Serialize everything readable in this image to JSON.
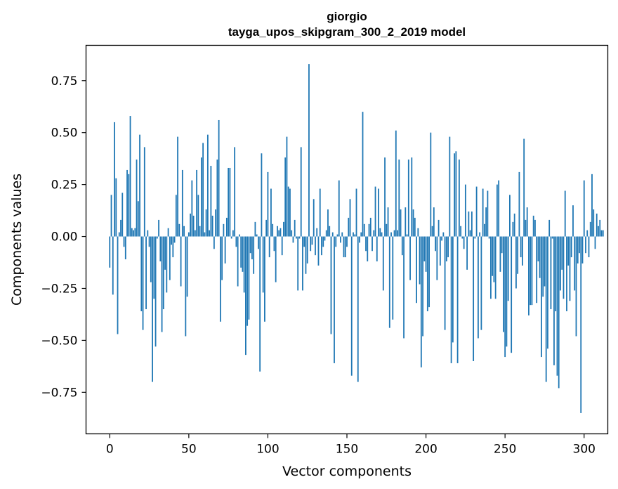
{
  "chart_data": {
    "type": "bar",
    "title_line1": "giorgio",
    "title_line2": "tayga_upos_skipgram_300_2_2019 model",
    "xlabel": "Vector components",
    "ylabel": "Components values",
    "xlim": [
      -15,
      315
    ],
    "ylim": [
      -0.95,
      0.92
    ],
    "xticks": [
      0,
      50,
      100,
      150,
      200,
      250,
      300
    ],
    "xtick_labels": [
      "0",
      "50",
      "100",
      "150",
      "200",
      "250",
      "300"
    ],
    "yticks": [
      0.75,
      0.5,
      0.25,
      0.0,
      -0.25,
      -0.5,
      -0.75
    ],
    "ytick_labels": [
      "0.75",
      "0.50",
      "0.25",
      "0.00",
      "−0.25",
      "−0.50",
      "−0.75"
    ],
    "grid": false,
    "color": "#1f77b4",
    "x_start": 0,
    "values": [
      -0.15,
      0.2,
      -0.28,
      0.55,
      0.28,
      -0.47,
      0.02,
      0.08,
      0.21,
      -0.05,
      -0.11,
      0.32,
      0.3,
      0.58,
      0.04,
      0.03,
      0.04,
      0.37,
      0.17,
      0.49,
      -0.36,
      -0.45,
      0.43,
      -0.35,
      0.03,
      -0.05,
      -0.22,
      -0.7,
      -0.3,
      -0.53,
      -0.01,
      0.08,
      -0.12,
      -0.46,
      -0.35,
      -0.16,
      -0.27,
      0.04,
      -0.21,
      -0.04,
      -0.1,
      -0.03,
      0.2,
      0.48,
      0.06,
      -0.24,
      0.32,
      0.05,
      -0.48,
      -0.29,
      0.02,
      0.11,
      0.27,
      0.1,
      0.03,
      0.32,
      0.2,
      0.05,
      0.38,
      0.45,
      0.02,
      0.13,
      0.49,
      0.03,
      0.34,
      0.1,
      -0.06,
      0.13,
      0.37,
      0.56,
      -0.41,
      -0.21,
      0.06,
      -0.13,
      0.09,
      0.33,
      0.33,
      -0.01,
      0.03,
      0.43,
      -0.05,
      -0.24,
      0.01,
      -0.15,
      -0.17,
      -0.27,
      -0.57,
      -0.43,
      -0.4,
      -0.08,
      -0.11,
      -0.18,
      0.07,
      0.01,
      -0.06,
      -0.65,
      0.4,
      -0.27,
      -0.41,
      0.08,
      0.31,
      -0.1,
      0.23,
      0.06,
      -0.07,
      -0.22,
      0.05,
      0.03,
      0.04,
      -0.09,
      0.07,
      0.38,
      0.48,
      0.24,
      0.23,
      0.03,
      -0.03,
      0.08,
      -0.01,
      -0.26,
      -0.01,
      0.43,
      -0.26,
      -0.05,
      -0.18,
      -0.13,
      0.83,
      -0.07,
      -0.04,
      0.18,
      -0.09,
      0.04,
      -0.14,
      0.23,
      -0.09,
      -0.05,
      -0.02,
      0.03,
      0.13,
      0.05,
      -0.47,
      0.02,
      -0.61,
      -0.05,
      0.01,
      0.27,
      -0.03,
      0.02,
      -0.1,
      -0.1,
      -0.05,
      0.09,
      0.18,
      -0.67,
      0.02,
      0.01,
      0.23,
      -0.7,
      -0.03,
      0.02,
      0.6,
      0.06,
      -0.07,
      -0.12,
      0.06,
      0.09,
      -0.07,
      0.03,
      0.24,
      -0.12,
      0.23,
      0.04,
      0.02,
      -0.26,
      0.38,
      0.06,
      0.14,
      -0.44,
      0.02,
      -0.4,
      0.03,
      0.51,
      0.03,
      0.37,
      0.13,
      -0.09,
      -0.49,
      0.14,
      0.01,
      0.37,
      -0.21,
      0.38,
      0.13,
      0.09,
      -0.32,
      0.04,
      -0.23,
      -0.63,
      -0.48,
      -0.12,
      -0.17,
      -0.36,
      -0.34,
      0.5,
      0.05,
      0.14,
      -0.07,
      -0.21,
      0.08,
      -0.14,
      -0.02,
      0.02,
      -0.45,
      -0.12,
      -0.1,
      0.48,
      -0.61,
      -0.51,
      0.4,
      0.41,
      -0.61,
      0.37,
      0.05,
      -0.01,
      -0.06,
      0.25,
      -0.16,
      0.12,
      0.03,
      0.12,
      -0.6,
      -0.01,
      0.24,
      -0.49,
      0.02,
      -0.45,
      0.23,
      0.06,
      0.14,
      0.22,
      -0.01,
      -0.3,
      -0.19,
      -0.22,
      -0.3,
      0.25,
      0.27,
      -0.17,
      -0.08,
      -0.46,
      -0.58,
      -0.53,
      -0.31,
      0.2,
      -0.56,
      0.07,
      0.11,
      -0.25,
      -0.18,
      0.31,
      -0.1,
      -0.14,
      0.47,
      0.08,
      0.14,
      -0.38,
      -0.33,
      -0.33,
      0.1,
      0.08,
      -0.32,
      -0.12,
      -0.2,
      -0.58,
      -0.29,
      -0.24,
      -0.7,
      -0.54,
      0.08,
      -0.35,
      -0.01,
      -0.62,
      -0.36,
      -0.67,
      -0.73,
      -0.26,
      -0.16,
      -0.3,
      0.22,
      -0.36,
      -0.14,
      -0.31,
      -0.1,
      0.15,
      -0.26,
      -0.48,
      -0.13,
      -0.08,
      -0.85,
      -0.13,
      0.27,
      -0.08,
      0.03,
      -0.1,
      0.07,
      0.3,
      0.13,
      -0.06,
      0.11,
      0.05,
      0.08,
      0.03,
      0.03
    ]
  }
}
